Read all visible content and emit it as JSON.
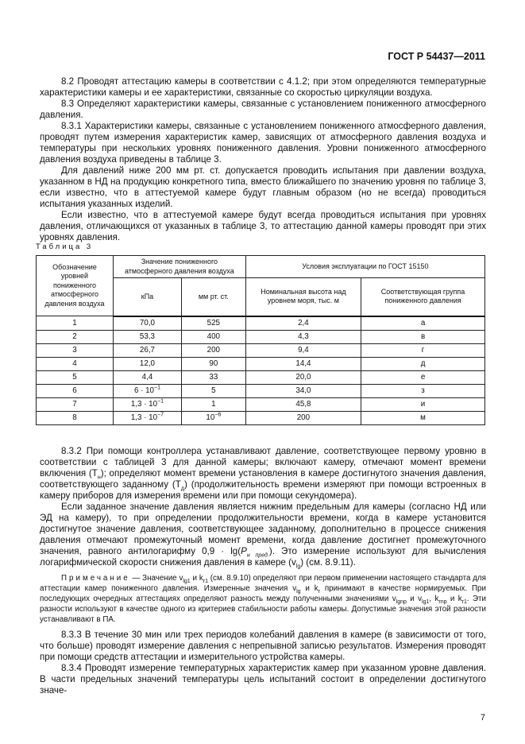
{
  "header": "ГОСТ Р 54437—2011",
  "paragraphs_top": [
    [
      {
        "t": "8.2 Проводят аттестацию камеры в соответствии с 4.1.2; при этом определяются температурные характеристики камеры и ее характеристики, связанные со скоростью циркуляции воздуха."
      }
    ],
    [
      {
        "t": "8.3 Определяют характеристики камеры, связанные с установлением пониженного атмосферного давления."
      }
    ],
    [
      {
        "t": "8.3.1 Характеристики камеры, связанные с установлением пониженного атмосферного давления, проводят путем измерения характеристик камер, зависящих от атмосферного давления воздуха и температуры при нескольких уровнях пониженного давления. Уровни пониженного атмосферного давления воздуха приведены в таблице 3."
      }
    ],
    [
      {
        "t": "Для давлений ниже 200 мм рт. ст. допускается проводить испытания при давлении воздуха, указанном в НД на продукцию конкретного типа, вместо ближайшего по значению уровня по таблице 3, если известно, что в аттестуемой камере будут главным образом (но не всегда) проводиться испытания указанных изделий."
      }
    ],
    [
      {
        "t": "Если известно, что в аттестуемой камере будут всегда проводиться испытания при уровнях давления, отличающихся от указанных в таблице 3, то аттестацию данной камеры проводят при этих уровнях давления."
      }
    ]
  ],
  "table": {
    "caption": "Таблица 3",
    "col1": "Обозначение уровней пониженного атмосферного давления воздуха",
    "group1": "Значение пониженного атмосферного давления воздуха",
    "group2": "Условия эксплуатации по ГОСТ 15150",
    "sub": [
      "кПа",
      "мм рт. ст.",
      "Номинальная высота над уровнем моря, тыс. м",
      "Соответствующая группа пониженного давления"
    ],
    "rows": [
      [
        [
          {
            "t": "1"
          }
        ],
        [
          {
            "t": "70,0"
          }
        ],
        [
          {
            "t": "525"
          }
        ],
        [
          {
            "t": "2,4"
          }
        ],
        [
          {
            "t": "а"
          }
        ]
      ],
      [
        [
          {
            "t": "2"
          }
        ],
        [
          {
            "t": "53,3"
          }
        ],
        [
          {
            "t": "400"
          }
        ],
        [
          {
            "t": "4,3"
          }
        ],
        [
          {
            "t": "в"
          }
        ]
      ],
      [
        [
          {
            "t": "3"
          }
        ],
        [
          {
            "t": "26,7"
          }
        ],
        [
          {
            "t": "200"
          }
        ],
        [
          {
            "t": "9,4"
          }
        ],
        [
          {
            "t": "г"
          }
        ]
      ],
      [
        [
          {
            "t": "4"
          }
        ],
        [
          {
            "t": "12,0"
          }
        ],
        [
          {
            "t": "90"
          }
        ],
        [
          {
            "t": "14,4"
          }
        ],
        [
          {
            "t": "д"
          }
        ]
      ],
      [
        [
          {
            "t": "5"
          }
        ],
        [
          {
            "t": "4,4"
          }
        ],
        [
          {
            "t": "33"
          }
        ],
        [
          {
            "t": "20,0"
          }
        ],
        [
          {
            "t": "е"
          }
        ]
      ],
      [
        [
          {
            "t": "6"
          }
        ],
        [
          {
            "t": "6 · 10"
          },
          {
            "t": "−1",
            "sup": true
          }
        ],
        [
          {
            "t": "5"
          }
        ],
        [
          {
            "t": "34,0"
          }
        ],
        [
          {
            "t": "з"
          }
        ]
      ],
      [
        [
          {
            "t": "7"
          }
        ],
        [
          {
            "t": "1,3 · 10"
          },
          {
            "t": "−1",
            "sup": true
          }
        ],
        [
          {
            "t": "1"
          }
        ],
        [
          {
            "t": "45,8"
          }
        ],
        [
          {
            "t": "и"
          }
        ]
      ],
      [
        [
          {
            "t": "8"
          }
        ],
        [
          {
            "t": "1,3 · 10"
          },
          {
            "t": "−7",
            "sup": true
          }
        ],
        [
          {
            "t": "10"
          },
          {
            "t": "−6",
            "sup": true
          }
        ],
        [
          {
            "t": "200"
          }
        ],
        [
          {
            "t": "м"
          }
        ]
      ]
    ]
  },
  "paragraphs_bottom": [
    [
      {
        "t": "8.3.2 При помощи контроллера устанавливают давление, соответствующее первому уровню в соответствии с таблицей 3 для данной камеры; включают камеру, отмечают момент времени включения (T"
      },
      {
        "t": "н",
        "sub": true
      },
      {
        "t": "); определяют момент времени установления в камере достигнутого значения давления, соответствующего заданному (T"
      },
      {
        "t": "д",
        "sub": true
      },
      {
        "t": ") (продолжительность времени измеряют при помощи встроенных в камеру приборов для измерения времени или при помощи секундомера)."
      }
    ],
    [
      {
        "t": "Если заданное значение давления является нижним предельным для камеры (согласно НД или ЭД на камеру), то при определении продолжительности времени, когда в камере установится достигнутое значение давления, соответствующее заданному, дополнительно в процессе снижения давления отмечают промежуточный момент времени, когда давление достигнет промежуточного значения, равного антилогарифму 0,9 · lg("
      },
      {
        "t": "P",
        "i": true
      },
      {
        "t": "н пред.",
        "sub": true,
        "i": true
      },
      {
        "t": "). Это измерение используют для вычисления логарифмической скорости снижения давления в камере (v"
      },
      {
        "t": "lg",
        "sub": true
      },
      {
        "t": ") (см. 8.9.11)."
      }
    ]
  ],
  "note": [
    {
      "t": "Примечание",
      "sp": true
    },
    {
      "t": " — Значение v"
    },
    {
      "t": "lg1",
      "sub": true
    },
    {
      "t": " и k"
    },
    {
      "t": "r1",
      "sub": true
    },
    {
      "t": " (см. 8.9.10) определяют при первом применении настоящего стандарта для аттестации камер пониженного давления. Измеренные значения v"
    },
    {
      "t": "lg",
      "sub": true
    },
    {
      "t": " и k"
    },
    {
      "t": "r",
      "sub": true
    },
    {
      "t": " принимают в качестве нормируемых. При последующих очередных аттестациях определяют разность между полученными значениями v"
    },
    {
      "t": "lgnp",
      "sub": true
    },
    {
      "t": " и v"
    },
    {
      "t": "lg1",
      "sub": true
    },
    {
      "t": ", k"
    },
    {
      "t": "rnp",
      "sub": true
    },
    {
      "t": " и k"
    },
    {
      "t": "r1",
      "sub": true
    },
    {
      "t": ". Эти разности используют в качестве одного из критериев стабильности работы камеры. Допустимые значения этой разности устанавливают в ПА."
    }
  ],
  "paragraphs_end": [
    [
      {
        "t": "8.3.3 В течение 30 мин или трех периодов колебаний давления в камере (в зависимости от того, что больше) проводят измерение давления с непрепывной записью результатов. Измерения проводят при помощи средств аттестации и измерительного устройства камеры."
      }
    ],
    [
      {
        "t": "8.3.4 Проводят измерение температурных характеристик камер при указанном уровне давления. В части предельных значений температуры цель испытаний состоит в определении достигнутого значе-"
      }
    ]
  ],
  "page_number": "7"
}
